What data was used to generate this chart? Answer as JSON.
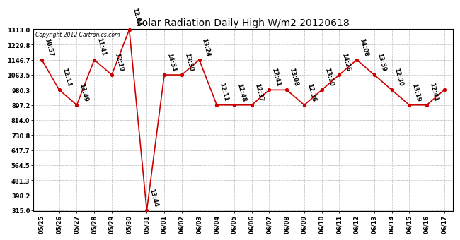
{
  "title": "Solar Radiation Daily High W/m2 20120618",
  "copyright": "Copyright 2012 Cartronics.com",
  "dates": [
    "05/25",
    "05/26",
    "05/27",
    "05/28",
    "05/29",
    "05/30",
    "05/31",
    "06/01",
    "06/02",
    "06/03",
    "06/04",
    "06/05",
    "06/06",
    "06/07",
    "06/08",
    "06/09",
    "06/10",
    "06/11",
    "06/12",
    "06/13",
    "06/14",
    "06/15",
    "06/16",
    "06/17"
  ],
  "values": [
    1146.7,
    980.3,
    897.2,
    1146.7,
    1063.5,
    1313.0,
    315.0,
    1063.5,
    1063.5,
    1146.7,
    897.2,
    897.2,
    897.2,
    980.3,
    980.3,
    897.2,
    980.3,
    1063.5,
    1146.7,
    1063.5,
    980.3,
    897.2,
    897.2,
    980.3
  ],
  "time_labels": [
    "10:57",
    "12:14",
    "13:49",
    "11:41",
    "12:19",
    "12:01",
    "13:44",
    "14:54",
    "13:30",
    "13:24",
    "12:11",
    "12:48",
    "12:37",
    "12:41",
    "13:08",
    "12:36",
    "13:10",
    "14:26",
    "14:08",
    "13:59",
    "12:30",
    "13:19",
    "12:41",
    ""
  ],
  "yticks": [
    315.0,
    398.2,
    481.3,
    564.5,
    647.7,
    730.8,
    814.0,
    897.2,
    980.3,
    1063.5,
    1146.7,
    1229.8,
    1313.0
  ],
  "ylim_min": 315.0,
  "ylim_max": 1313.0,
  "line_color": "#cc0000",
  "bg_color": "#ffffff",
  "grid_color": "#bbbbbb",
  "title_fontsize": 10,
  "tick_fontsize": 6,
  "annot_fontsize": 6,
  "copyright_fontsize": 5.5
}
